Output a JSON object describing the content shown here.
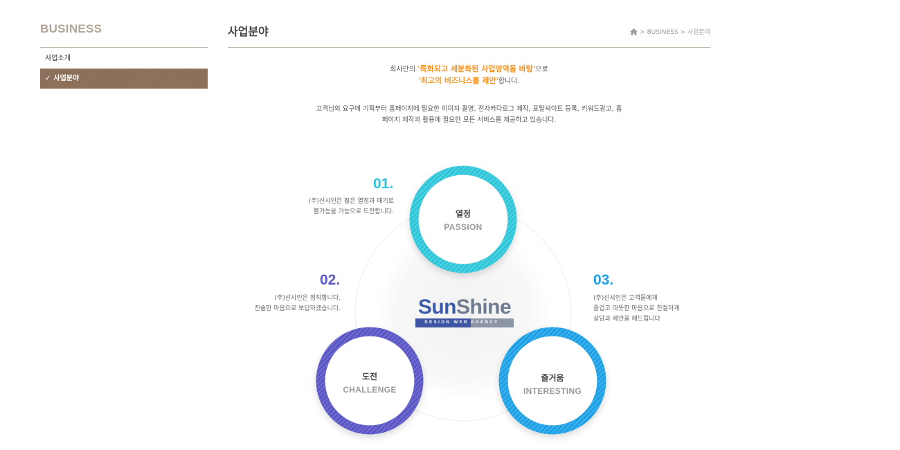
{
  "sidebar": {
    "title": "BUSINESS",
    "items": [
      {
        "label": "사업소개",
        "active": false
      },
      {
        "label": "사업분야",
        "active": true
      }
    ]
  },
  "header": {
    "title": "사업분야",
    "breadcrumb": {
      "home_icon": "home-icon",
      "path": "> BUSINESS > 사업분야"
    }
  },
  "intro": {
    "line1_prefix": "회사만의 ",
    "line1_highlight": "'특화되고 세분화된 사업영역을 바탕'",
    "line1_suffix": "으로",
    "line2_highlight": "'최고의 비즈니스를 제안'",
    "line2_suffix": "합니다.",
    "desc_line1": "고객님의 요구에 기획부터 홈페이지에 필요한 이미지 촬영, 전자카다로그 제작, 포탈싸이트 등록, 키워드광고, 홈",
    "desc_line2": "페이지 제작과 활용에 필요한 모든 서비스를 제공하고 있습니다."
  },
  "values": [
    {
      "number": "01.",
      "ko": "열정",
      "en": "PASSION",
      "desc1": "(주)선샤인은 젊은 열정과 패기로",
      "desc2": "불가능을 가능으로 도전합니다."
    },
    {
      "number": "02.",
      "ko": "도전",
      "en": "CHALLENGE",
      "desc1": "(주)선샤인은 정직합니다.",
      "desc2": "진솔한 마음으로 보답하겠습니다."
    },
    {
      "number": "03.",
      "ko": "즐거움",
      "en": "INTERESTING",
      "desc1": "(주)선샤인은 고객들에게",
      "desc2": "즐겁고 따뜻한 마음으로 친절하게",
      "desc3": "상담과 제안을 해드립니다"
    }
  ],
  "logo": {
    "sun": "Sun",
    "shine": "Shine",
    "tag_left": "DESIGN WEB",
    "tag_right": "AGENCY"
  },
  "colors": {
    "passion": "#2ec5d8",
    "challenge": "#5a56c4",
    "interesting": "#1d9fe4",
    "accent_orange": "#f7931e",
    "sidebar_active": "#8a6e57"
  }
}
